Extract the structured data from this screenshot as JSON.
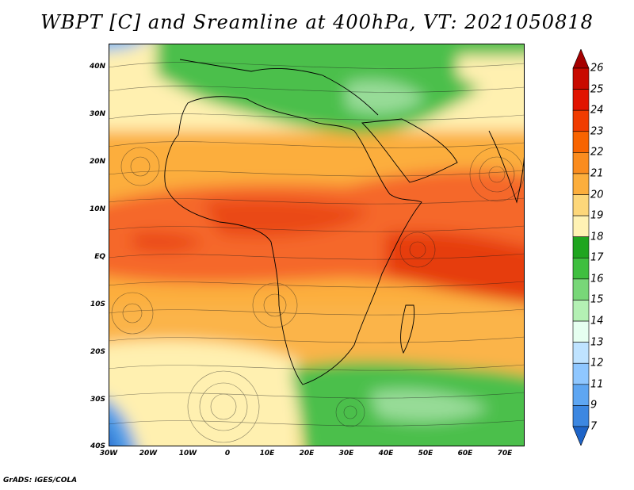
{
  "title": "WBPT [C] and Sreamline at 400hPa, VT: 2021050818",
  "footer": "GrADS: IGES/COLA",
  "lat_labels": [
    "40N",
    "30N",
    "20N",
    "10N",
    "EQ",
    "10S",
    "20S",
    "30S",
    "40S"
  ],
  "lon_labels": [
    "30W",
    "20W",
    "10W",
    "0",
    "10E",
    "20E",
    "30E",
    "40E",
    "50E",
    "60E",
    "70E"
  ],
  "colorbar": {
    "labels": [
      "26",
      "25",
      "24",
      "23",
      "22",
      "21",
      "20",
      "19",
      "18",
      "17",
      "16",
      "15",
      "14",
      "13",
      "12",
      "11",
      "9",
      "7"
    ],
    "colors": [
      "#a50000",
      "#c80a00",
      "#e11400",
      "#f03c00",
      "#f86400",
      "#fa8c1e",
      "#fcae3c",
      "#fdd77a",
      "#fff2b4",
      "#1fa51f",
      "#3fbf3f",
      "#78d778",
      "#b4f0b4",
      "#e6fff0",
      "#bfe3ff",
      "#8fc7ff",
      "#5ea6f2",
      "#3c87e1",
      "#1e64c8"
    ]
  },
  "map": {
    "lon_range": [
      -30,
      75
    ],
    "lat_range": [
      -40,
      45
    ],
    "regions": {
      "warm_band": "orange-red equatorial band",
      "north_green": "green moist region over Mediterranean",
      "south_green": "green region in southern Indian Ocean",
      "sw_blue": "blue cold patch in southwest corner"
    }
  }
}
